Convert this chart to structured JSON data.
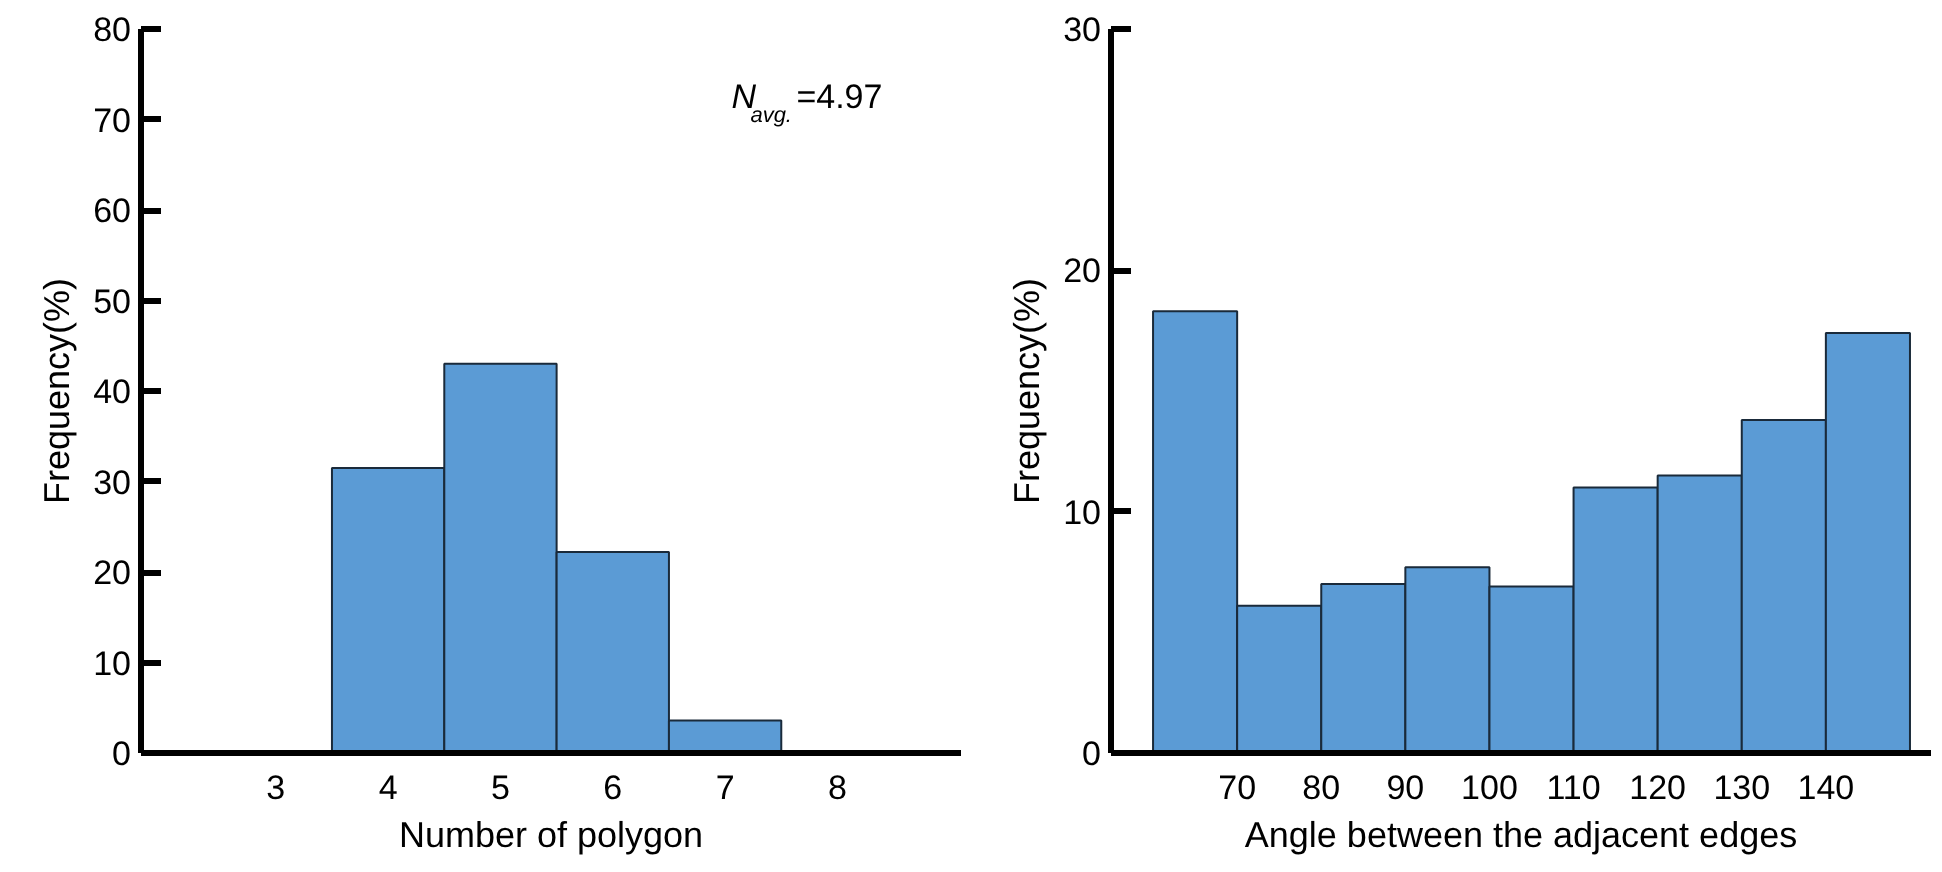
{
  "chart_data": [
    {
      "type": "histogram",
      "xlabel": "Number of polygon",
      "ylabel": "Frequency(%)",
      "bins": [
        3.5,
        4.5,
        5.5,
        6.5,
        7.5
      ],
      "values": [
        31.5,
        43,
        22.2,
        3.6
      ],
      "color": "#5b9bd5",
      "xlim": [
        1.8,
        9.1
      ],
      "ylim": [
        0,
        80
      ],
      "xticks": [
        3,
        4,
        5,
        6,
        7,
        8
      ],
      "yticks": [
        0,
        10,
        20,
        30,
        40,
        50,
        60,
        70,
        80
      ],
      "grid": false,
      "annotations": [
        "N$_{avg.}$=4.97"
      ]
    },
    {
      "type": "histogram",
      "xlabel": "Angle between the adjacent edges",
      "ylabel": "Frequency(%)",
      "bins": [
        60,
        70,
        80,
        90,
        100,
        110,
        120,
        130,
        140,
        150
      ],
      "values": [
        18.3,
        6.1,
        7.0,
        7.7,
        6.9,
        11.0,
        11.5,
        13.8,
        17.4
      ],
      "color": "#5b9bd5",
      "xlim": [
        55,
        152.5
      ],
      "ylim": [
        0,
        30
      ],
      "xticks": [
        70,
        80,
        90,
        100,
        110,
        120,
        130,
        140
      ],
      "yticks": [
        0,
        10,
        20,
        30
      ],
      "grid": false
    }
  ]
}
